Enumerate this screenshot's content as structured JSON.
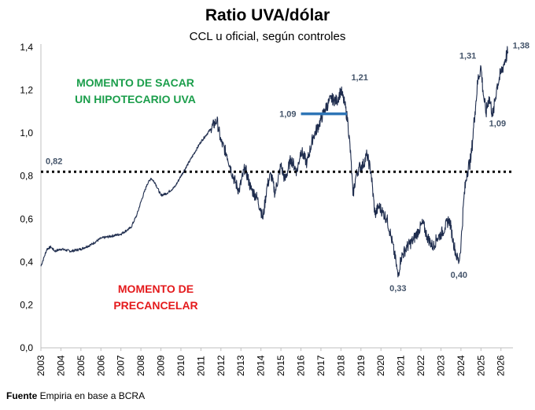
{
  "chart_data": {
    "type": "line",
    "title": "Ratio UVA/dólar",
    "subtitle": "CCL u oficial, según controles",
    "xlabel": "",
    "ylabel": "",
    "xlim": [
      2003,
      2026.6
    ],
    "ylim": [
      0,
      1.4
    ],
    "yticks": [
      "0,0",
      "0,2",
      "0,4",
      "0,6",
      "0,8",
      "1,0",
      "1,2",
      "1,4"
    ],
    "xticks": [
      "2003",
      "2004",
      "2005",
      "2006",
      "2007",
      "2008",
      "2009",
      "2010",
      "2011",
      "2012",
      "2013",
      "2014",
      "2015",
      "2016",
      "2017",
      "2018",
      "2019",
      "2020",
      "2021",
      "2022",
      "2023",
      "2024",
      "2025",
      "2026"
    ],
    "grid": false,
    "line_color": "#1f2d4e",
    "series": [
      {
        "values": [
          [
            2003.0,
            0.38
          ],
          [
            2003.15,
            0.42
          ],
          [
            2003.3,
            0.46
          ],
          [
            2003.5,
            0.47
          ],
          [
            2003.7,
            0.45
          ],
          [
            2004.0,
            0.46
          ],
          [
            2004.5,
            0.45
          ],
          [
            2005.0,
            0.46
          ],
          [
            2005.5,
            0.48
          ],
          [
            2006.0,
            0.51
          ],
          [
            2006.5,
            0.52
          ],
          [
            2007.0,
            0.53
          ],
          [
            2007.5,
            0.56
          ],
          [
            2007.8,
            0.62
          ],
          [
            2008.0,
            0.68
          ],
          [
            2008.3,
            0.76
          ],
          [
            2008.5,
            0.79
          ],
          [
            2008.7,
            0.77
          ],
          [
            2009.0,
            0.71
          ],
          [
            2009.3,
            0.72
          ],
          [
            2009.7,
            0.75
          ],
          [
            2010.0,
            0.8
          ],
          [
            2010.5,
            0.88
          ],
          [
            2011.0,
            0.96
          ],
          [
            2011.5,
            1.02
          ],
          [
            2011.8,
            1.06
          ],
          [
            2012.0,
            0.96
          ],
          [
            2012.3,
            0.9
          ],
          [
            2012.6,
            0.8
          ],
          [
            2012.9,
            0.73
          ],
          [
            2013.2,
            0.84
          ],
          [
            2013.5,
            0.74
          ],
          [
            2013.8,
            0.7
          ],
          [
            2014.0,
            0.64
          ],
          [
            2014.1,
            0.6
          ],
          [
            2014.3,
            0.75
          ],
          [
            2014.5,
            0.81
          ],
          [
            2014.7,
            0.72
          ],
          [
            2015.0,
            0.85
          ],
          [
            2015.2,
            0.78
          ],
          [
            2015.5,
            0.88
          ],
          [
            2015.8,
            0.82
          ],
          [
            2016.0,
            0.92
          ],
          [
            2016.3,
            0.86
          ],
          [
            2016.6,
            0.98
          ],
          [
            2016.9,
            1.04
          ],
          [
            2017.2,
            1.11
          ],
          [
            2017.5,
            1.16
          ],
          [
            2017.8,
            1.15
          ],
          [
            2018.0,
            1.2
          ],
          [
            2018.2,
            1.13
          ],
          [
            2018.35,
            1.05
          ],
          [
            2018.5,
            0.88
          ],
          [
            2018.6,
            0.71
          ],
          [
            2018.75,
            0.8
          ],
          [
            2018.9,
            0.84
          ],
          [
            2019.1,
            0.85
          ],
          [
            2019.3,
            0.9
          ],
          [
            2019.5,
            0.82
          ],
          [
            2019.7,
            0.62
          ],
          [
            2019.9,
            0.66
          ],
          [
            2020.1,
            0.63
          ],
          [
            2020.3,
            0.6
          ],
          [
            2020.5,
            0.52
          ],
          [
            2020.75,
            0.4
          ],
          [
            2020.85,
            0.33
          ],
          [
            2021.0,
            0.42
          ],
          [
            2021.3,
            0.47
          ],
          [
            2021.6,
            0.5
          ],
          [
            2021.9,
            0.55
          ],
          [
            2022.1,
            0.58
          ],
          [
            2022.3,
            0.52
          ],
          [
            2022.6,
            0.47
          ],
          [
            2022.8,
            0.51
          ],
          [
            2023.0,
            0.53
          ],
          [
            2023.2,
            0.56
          ],
          [
            2023.4,
            0.6
          ],
          [
            2023.5,
            0.56
          ],
          [
            2023.6,
            0.5
          ],
          [
            2023.8,
            0.42
          ],
          [
            2023.9,
            0.4
          ],
          [
            2024.0,
            0.48
          ],
          [
            2024.15,
            0.7
          ],
          [
            2024.3,
            0.82
          ],
          [
            2024.5,
            0.88
          ],
          [
            2024.7,
            1.1
          ],
          [
            2024.85,
            1.25
          ],
          [
            2025.0,
            1.31
          ],
          [
            2025.1,
            1.2
          ],
          [
            2025.25,
            1.09
          ],
          [
            2025.4,
            1.17
          ],
          [
            2025.6,
            1.08
          ],
          [
            2025.8,
            1.22
          ],
          [
            2026.0,
            1.28
          ],
          [
            2026.2,
            1.34
          ],
          [
            2026.35,
            1.38
          ]
        ]
      }
    ],
    "reference_line": {
      "y": 0.82,
      "label": "0,82",
      "style": "dotted",
      "color": "#000000"
    },
    "segment": {
      "x": [
        2016.0,
        2018.3
      ],
      "y": 1.09,
      "label": "1,09",
      "color": "#2e75b6"
    },
    "annotations": [
      {
        "label": "1,21",
        "x": 2018.2,
        "y": 1.21
      },
      {
        "label": "0,33",
        "x": 2020.85,
        "y": 0.33
      },
      {
        "label": "0,40",
        "x": 2023.9,
        "y": 0.4
      },
      {
        "label": "1,31",
        "x": 2025.0,
        "y": 1.31
      },
      {
        "label": "1,09",
        "x": 2025.25,
        "y": 1.09
      },
      {
        "label": "1,38",
        "x": 2026.35,
        "y": 1.38
      }
    ],
    "zones": [
      {
        "lines": [
          "MOMENTO DE SACAR",
          "UN HIPOTECARIO UVA"
        ],
        "color": "#1b9e4b"
      },
      {
        "lines": [
          "MOMENTO DE",
          "PRECANCELAR"
        ],
        "color": "#e41a1c"
      }
    ]
  },
  "footer": {
    "bold": "Fuente",
    "text": " Empiria en base a BCRA"
  }
}
